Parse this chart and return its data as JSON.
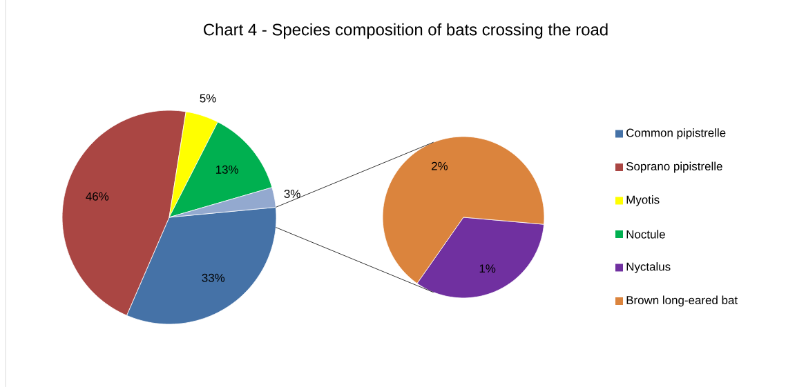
{
  "chart_data": [
    {
      "type": "pie",
      "title": "Chart 4 - Species composition of bats crossing the road",
      "categories": [
        "Common pipistrelle",
        "Soprano pipistrelle",
        "Myotis",
        "Noctule",
        null
      ],
      "values": [
        33,
        46,
        5,
        13,
        3
      ],
      "colors": [
        "#4572a7",
        "#aa4643",
        "#ffff00",
        "#00b050",
        "#93a9cf"
      ],
      "value_labels": [
        "33%",
        "46%",
        "5%",
        "13%",
        "3%"
      ],
      "legend": "right"
    },
    {
      "type": "pie",
      "categories": [
        "Nyctalus",
        "Brown long-eared bat"
      ],
      "values": [
        1,
        2
      ],
      "colors": [
        "#7030a0",
        "#db843d"
      ],
      "value_labels": [
        "1%",
        "2%"
      ],
      "legend": "right"
    }
  ]
}
